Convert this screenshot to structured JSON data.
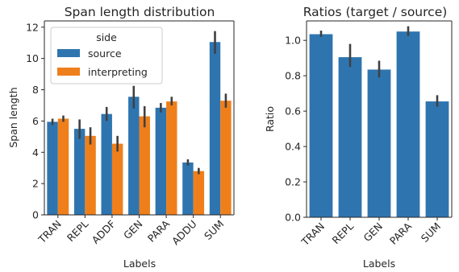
{
  "colors": {
    "source": "#2e75b0",
    "interpreting": "#ef7f1a",
    "errorbar": "#404040",
    "axis": "#262626"
  },
  "chart_data": [
    {
      "type": "bar",
      "title": "Span length distribution",
      "xlabel": "Labels",
      "ylabel": "Span length",
      "ylim": [
        0,
        12.4
      ],
      "yticks": [
        "0",
        "2",
        "4",
        "6",
        "8",
        "10",
        "12"
      ],
      "categories": [
        "TRAN",
        "REPL",
        "ADDF",
        "GEN",
        "PARA",
        "ADDU",
        "SUM"
      ],
      "legend": {
        "title": "side",
        "placement": "upper-left"
      },
      "grid": false,
      "series": [
        {
          "name": "source",
          "values": [
            5.95,
            5.5,
            6.45,
            7.55,
            6.85,
            3.35,
            11.05
          ],
          "err_low": [
            5.75,
            4.85,
            6.0,
            6.8,
            6.55,
            3.15,
            10.3
          ],
          "err_high": [
            6.15,
            6.1,
            6.9,
            8.25,
            7.15,
            3.55,
            11.75
          ]
        },
        {
          "name": "interpreting",
          "values": [
            6.15,
            5.05,
            4.55,
            6.3,
            7.25,
            2.8,
            7.3
          ],
          "err_low": [
            5.95,
            4.5,
            4.05,
            5.6,
            7.0,
            2.6,
            6.85
          ],
          "err_high": [
            6.35,
            5.6,
            5.05,
            6.95,
            7.55,
            3.0,
            7.75
          ]
        }
      ]
    },
    {
      "type": "bar",
      "title": "Ratios (target / source)",
      "xlabel": "Labels",
      "ylabel": "Ratio",
      "ylim": [
        0,
        1.11
      ],
      "yticks": [
        "0.0",
        "0.2",
        "0.4",
        "0.6",
        "0.8",
        "1.0"
      ],
      "categories": [
        "TRAN",
        "REPL",
        "GEN",
        "PARA",
        "SUM"
      ],
      "grid": false,
      "series": [
        {
          "values": [
            1.035,
            0.905,
            0.835,
            1.05,
            0.655
          ],
          "err_low": [
            1.02,
            0.85,
            0.79,
            1.025,
            0.625
          ],
          "err_high": [
            1.055,
            0.98,
            0.885,
            1.08,
            0.69
          ]
        }
      ]
    }
  ]
}
